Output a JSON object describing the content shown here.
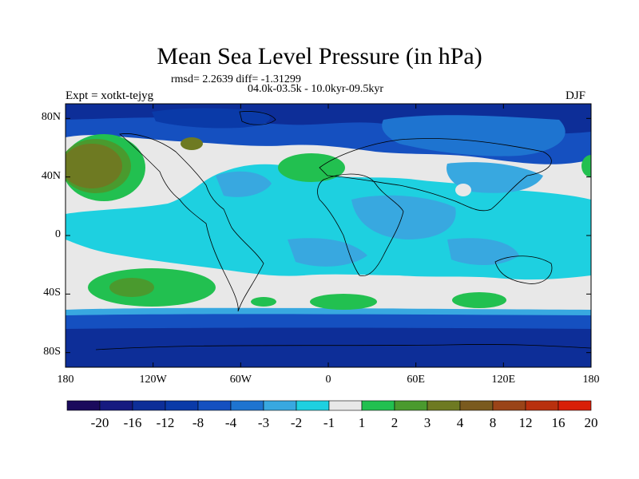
{
  "title": "Mean Sea Level Pressure (in hPa)",
  "stats": "rmsd= 2.2639 diff= -1.31299",
  "period": "04.0k-03.5k - 10.0kyr-09.5kyr",
  "experiment": "Expt = xotkt-tejyg",
  "season": "DJF",
  "axes": {
    "lat_ticks": [
      {
        "label": "80N",
        "value": 80
      },
      {
        "label": "40N",
        "value": 40
      },
      {
        "label": "0",
        "value": 0
      },
      {
        "label": "40S",
        "value": -40
      },
      {
        "label": "80S",
        "value": -80
      }
    ],
    "lon_ticks": [
      {
        "label": "180",
        "value": -180
      },
      {
        "label": "120W",
        "value": -120
      },
      {
        "label": "60W",
        "value": -60
      },
      {
        "label": "0",
        "value": 0
      },
      {
        "label": "60E",
        "value": 60
      },
      {
        "label": "120E",
        "value": 120
      },
      {
        "label": "180",
        "value": 180
      }
    ]
  },
  "colorbar": {
    "colors": [
      "#1b0a5c",
      "#161a80",
      "#0d2e98",
      "#0a3aa8",
      "#1550c0",
      "#1e74d0",
      "#38a8e0",
      "#1ed0e0",
      "#e8e8e8",
      "#22c050",
      "#4a9a2e",
      "#6e7a22",
      "#7a5a1e",
      "#9a4418",
      "#b8300e",
      "#d81f08"
    ],
    "labels": [
      "-20",
      "-16",
      "-12",
      "-8",
      "-4",
      "-3",
      "-2",
      "-1",
      "1",
      "2",
      "3",
      "4",
      "8",
      "12",
      "16",
      "20"
    ]
  }
}
